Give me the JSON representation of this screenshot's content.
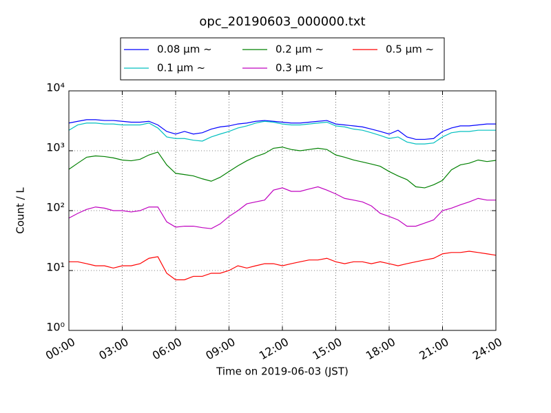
{
  "chart_data": {
    "type": "line",
    "title": "opc_20190603_000000.txt",
    "x_label": "Time on 2019-06-03 (JST)",
    "y_label": "Count / L",
    "log_scale_y": true,
    "grid": true,
    "legend_position": "top",
    "legend_columns": 3,
    "x": [
      "00:00",
      "00:30",
      "01:00",
      "01:30",
      "02:00",
      "02:30",
      "03:00",
      "03:30",
      "04:00",
      "04:30",
      "05:00",
      "05:30",
      "06:00",
      "06:30",
      "07:00",
      "07:30",
      "08:00",
      "08:30",
      "09:00",
      "09:30",
      "10:00",
      "10:30",
      "11:00",
      "11:30",
      "12:00",
      "12:30",
      "13:00",
      "13:30",
      "14:00",
      "14:30",
      "15:00",
      "15:30",
      "16:00",
      "16:30",
      "17:00",
      "17:30",
      "18:00",
      "18:30",
      "19:00",
      "19:30",
      "20:00",
      "20:30",
      "21:00",
      "21:30",
      "22:00",
      "22:30",
      "23:00",
      "23:30",
      "24:00"
    ],
    "xticks": [
      "00:00",
      "03:00",
      "06:00",
      "09:00",
      "12:00",
      "15:00",
      "18:00",
      "21:00",
      "24:00"
    ],
    "ylim": [
      1,
      10000
    ],
    "yticks": [
      {
        "value": 1,
        "label": "10⁰"
      },
      {
        "value": 10,
        "label": "10¹"
      },
      {
        "value": 100,
        "label": "10²"
      },
      {
        "value": 1000,
        "label": "10³"
      },
      {
        "value": 10000,
        "label": "10⁴"
      }
    ],
    "series": [
      {
        "name": "0.08 μm ~",
        "color": "#0000ff",
        "values": [
          2900,
          3100,
          3300,
          3300,
          3200,
          3200,
          3100,
          3000,
          3000,
          3100,
          2700,
          2100,
          1900,
          2100,
          1900,
          2000,
          2300,
          2500,
          2600,
          2800,
          2900,
          3100,
          3200,
          3100,
          3000,
          2900,
          2900,
          3000,
          3100,
          3200,
          2800,
          2700,
          2600,
          2500,
          2300,
          2100,
          1900,
          2200,
          1700,
          1550,
          1550,
          1600,
          2100,
          2400,
          2600,
          2600,
          2700,
          2800,
          2800
        ]
      },
      {
        "name": "0.1 μm ~",
        "color": "#00bfbf",
        "values": [
          2200,
          2700,
          2900,
          2900,
          2800,
          2800,
          2700,
          2700,
          2700,
          2900,
          2400,
          1700,
          1600,
          1600,
          1500,
          1450,
          1700,
          1900,
          2100,
          2400,
          2600,
          2900,
          3100,
          3000,
          2800,
          2700,
          2700,
          2800,
          2900,
          3000,
          2600,
          2500,
          2300,
          2200,
          2000,
          1800,
          1600,
          1700,
          1400,
          1300,
          1300,
          1350,
          1700,
          2000,
          2100,
          2100,
          2200,
          2200,
          2200
        ]
      },
      {
        "name": "0.2 μm ~",
        "color": "#008000",
        "values": [
          490,
          620,
          780,
          820,
          800,
          760,
          700,
          680,
          720,
          850,
          950,
          580,
          420,
          400,
          380,
          340,
          310,
          360,
          450,
          560,
          680,
          800,
          900,
          1100,
          1150,
          1050,
          1000,
          1050,
          1100,
          1050,
          850,
          780,
          700,
          650,
          600,
          550,
          450,
          380,
          330,
          250,
          240,
          270,
          320,
          480,
          580,
          620,
          700,
          660,
          690
        ]
      },
      {
        "name": "0.3 μm ~",
        "color": "#bf00bf",
        "values": [
          75,
          90,
          105,
          115,
          110,
          100,
          100,
          95,
          100,
          115,
          115,
          65,
          53,
          55,
          55,
          52,
          50,
          60,
          80,
          100,
          130,
          140,
          150,
          220,
          240,
          210,
          210,
          230,
          250,
          220,
          190,
          160,
          150,
          140,
          120,
          90,
          80,
          70,
          55,
          55,
          62,
          70,
          100,
          110,
          125,
          140,
          160,
          150,
          150
        ]
      },
      {
        "name": "0.5 μm ~",
        "color": "#ff0000",
        "values": [
          14,
          14,
          13,
          12,
          12,
          11,
          12,
          12,
          13,
          16,
          17,
          9,
          7,
          7,
          8,
          8,
          9,
          9,
          10,
          12,
          11,
          12,
          13,
          13,
          12,
          13,
          14,
          15,
          15,
          16,
          14,
          13,
          14,
          14,
          13,
          14,
          13,
          12,
          13,
          14,
          15,
          16,
          19,
          20,
          20,
          21,
          20,
          19,
          18
        ]
      }
    ]
  }
}
